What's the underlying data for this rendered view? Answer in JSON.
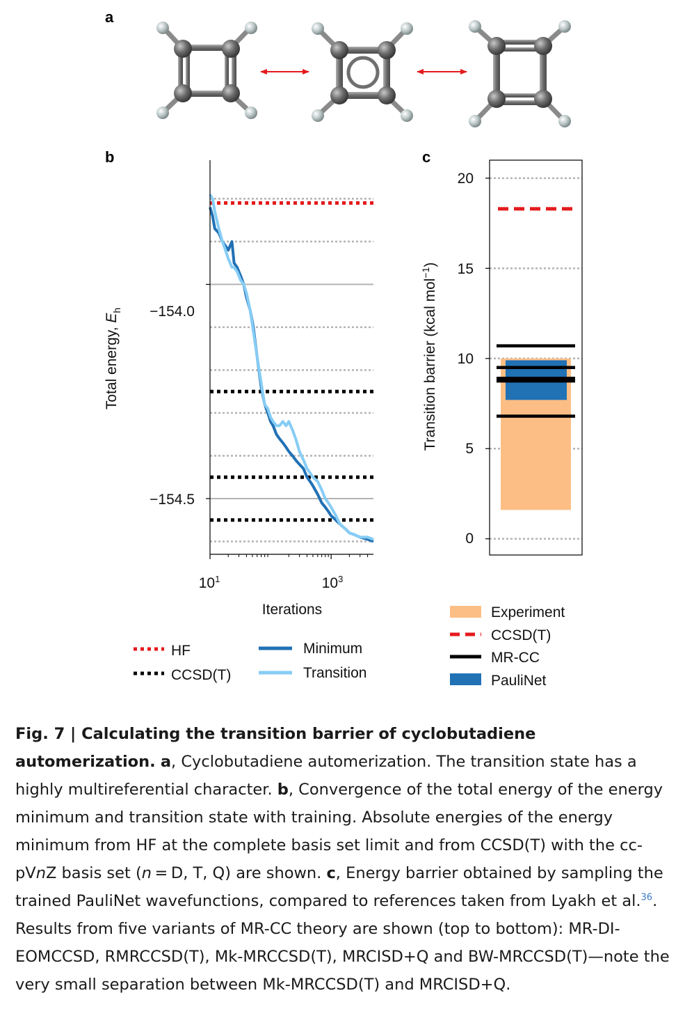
{
  "panels": {
    "a": "a",
    "b": "b",
    "c": "c"
  },
  "chart_data": [
    {
      "type": "line",
      "panel": "b",
      "xscale": "log",
      "xlim": [
        10,
        5000
      ],
      "ylim": [
        -154.63,
        -153.71
      ],
      "xticks": [
        {
          "value": 10,
          "base": "10",
          "exp": "1"
        },
        {
          "value": 1000,
          "base": "10",
          "exp": "3"
        }
      ],
      "yticks": [
        {
          "value": -154.0,
          "label": "−154.0"
        },
        {
          "value": -154.5,
          "label": "−154.5"
        }
      ],
      "xlabel": "Iterations",
      "ylabel_main": "Total energy, ",
      "ylabel_var": "E",
      "ylabel_sub": "h",
      "reference_lines": [
        {
          "name": "HF",
          "y": -153.81,
          "color": "#e41a1c",
          "style": "dotted"
        },
        {
          "name": "CCSD(T)",
          "y": -154.25,
          "color": "#000000",
          "style": "dotted"
        },
        {
          "name": "CCSD(T)",
          "y": -154.45,
          "color": "#000000",
          "style": "dotted"
        },
        {
          "name": "CCSD(T)",
          "y": -154.55,
          "color": "#000000",
          "style": "dotted"
        }
      ],
      "series": [
        {
          "name": "Minimum",
          "color": "#2171b5",
          "x": [
            10,
            11,
            12,
            14,
            16,
            18,
            20,
            23,
            25,
            28,
            32,
            36,
            40,
            46,
            52,
            60,
            70,
            80,
            90,
            100,
            110,
            125,
            140,
            160,
            180,
            200,
            230,
            260,
            300,
            350,
            400,
            450,
            500,
            600,
            700,
            800,
            900,
            1000,
            1200,
            1400,
            1700,
            2000,
            2500,
            3000,
            4000,
            5000
          ],
          "y": [
            -153.82,
            -153.84,
            -153.87,
            -153.88,
            -153.9,
            -153.91,
            -153.92,
            -153.9,
            -153.95,
            -153.96,
            -153.98,
            -154.0,
            -154.03,
            -154.06,
            -154.1,
            -154.17,
            -154.24,
            -154.28,
            -154.3,
            -154.32,
            -154.33,
            -154.35,
            -154.36,
            -154.37,
            -154.38,
            -154.39,
            -154.4,
            -154.41,
            -154.42,
            -154.43,
            -154.45,
            -154.46,
            -154.47,
            -154.49,
            -154.51,
            -154.52,
            -154.53,
            -154.54,
            -154.55,
            -154.56,
            -154.57,
            -154.58,
            -154.585,
            -154.59,
            -154.595,
            -154.6
          ]
        },
        {
          "name": "Transition",
          "color": "#87cdf5",
          "x": [
            10,
            11,
            12,
            14,
            16,
            18,
            20,
            23,
            25,
            28,
            32,
            36,
            40,
            46,
            52,
            60,
            70,
            80,
            90,
            100,
            110,
            125,
            140,
            160,
            180,
            200,
            230,
            260,
            300,
            350,
            400,
            450,
            500,
            600,
            700,
            800,
            900,
            1000,
            1200,
            1400,
            1700,
            2000,
            2500,
            3000,
            4000,
            5000
          ],
          "y": [
            -153.79,
            -153.8,
            -153.83,
            -153.87,
            -153.9,
            -153.92,
            -153.94,
            -153.96,
            -153.96,
            -153.97,
            -153.99,
            -154.0,
            -154.02,
            -154.06,
            -154.11,
            -154.17,
            -154.23,
            -154.28,
            -154.29,
            -154.31,
            -154.32,
            -154.33,
            -154.33,
            -154.32,
            -154.33,
            -154.32,
            -154.34,
            -154.36,
            -154.39,
            -154.41,
            -154.43,
            -154.44,
            -154.45,
            -154.46,
            -154.48,
            -154.5,
            -154.51,
            -154.52,
            -154.54,
            -154.56,
            -154.57,
            -154.58,
            -154.585,
            -154.59,
            -154.59,
            -154.595
          ]
        }
      ],
      "legend": [
        {
          "label": "HF",
          "kind": "dotted",
          "color": "#e41a1c"
        },
        {
          "label": "CCSD(T)",
          "kind": "dotted",
          "color": "#000000"
        },
        {
          "label": "Minimum",
          "kind": "line",
          "color": "#2171b5"
        },
        {
          "label": "Transition",
          "kind": "line",
          "color": "#87cdf5"
        }
      ]
    },
    {
      "type": "bar",
      "panel": "c",
      "ylim": [
        -0.9,
        21
      ],
      "yticks": [
        {
          "value": 0,
          "label": "0"
        },
        {
          "value": 5,
          "label": "5"
        },
        {
          "value": 10,
          "label": "10"
        },
        {
          "value": 15,
          "label": "15"
        },
        {
          "value": 20,
          "label": "20"
        }
      ],
      "ylabel_main": "Transition barrier (kcal mol",
      "ylabel_sup": "−1",
      "ylabel_end": ")",
      "experiment": {
        "label": "Experiment",
        "low": 1.6,
        "high": 10.0,
        "color": "#fdbe85"
      },
      "paulinet": {
        "label": "PauliNet",
        "low": 7.7,
        "high": 9.9,
        "color": "#2171b5"
      },
      "ccsdt": {
        "label": "CCSD(T)",
        "value": 18.3,
        "color": "#e41a1c"
      },
      "mrcc": {
        "label": "MR-CC",
        "values": [
          10.7,
          9.5,
          8.9,
          8.75,
          6.8
        ],
        "color": "#000000"
      },
      "legend": [
        {
          "label": "Experiment",
          "kind": "patch",
          "color": "#fdbe85"
        },
        {
          "label": "CCSD(T)",
          "kind": "dashed",
          "color": "#e41a1c"
        },
        {
          "label": "MR-CC",
          "kind": "line",
          "color": "#000000"
        },
        {
          "label": "PauliNet",
          "kind": "patch",
          "color": "#2171b5"
        }
      ]
    }
  ],
  "caption": {
    "fig_label": "Fig. 7 | Calculating the transition barrier of cyclobutadiene automerization.",
    "a_label": "a",
    "a_text": ", Cyclobutadiene automerization. The transition state has a highly multireferential character. ",
    "b_label": "b",
    "b_text": ", Convergence of the total energy of the energy minimum and transition state with training. Absolute energies of the energy minimum from HF at the complete basis set limit and from CCSD(T) with the cc-pV",
    "b_var": "n",
    "b_text2": "Z basis set (",
    "b_var2": "n",
    "b_text3": " = D, T, Q) are shown. ",
    "c_label": "c",
    "c_text": ", Energy barrier obtained by sampling the trained PauliNet wavefunctions, compared to references taken from Lyakh et al.",
    "ref": "36",
    "c_text2": ". Results from five variants of MR-CC theory are shown (top to bottom): MR-DI-EOMCCSD, RMRCCSD(T), Mk-MRCCSD(T), MRCISD+Q and BW-MRCCSD(T)—note the very small separation between Mk-MRCCSD(T) and MRCISD+Q."
  }
}
